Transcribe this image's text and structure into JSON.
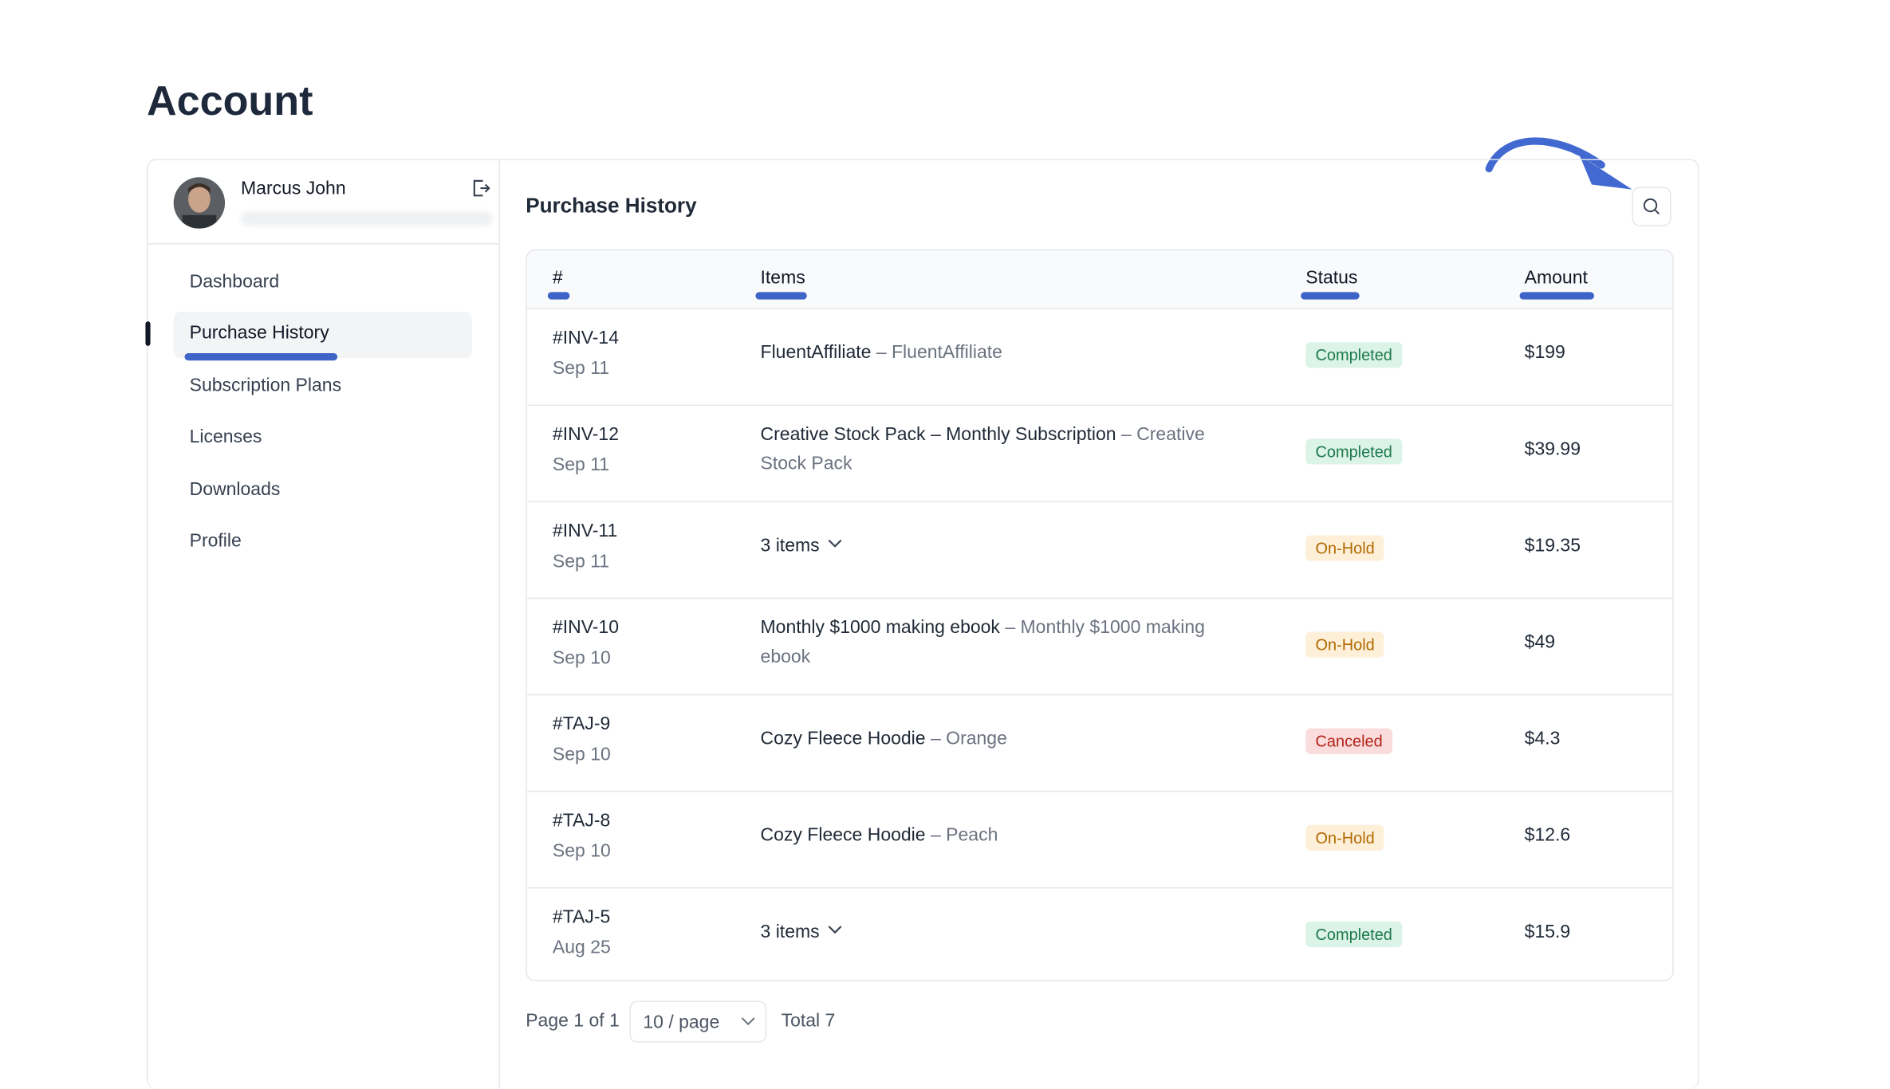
{
  "page": {
    "title": "Account"
  },
  "user": {
    "name": "Marcus John"
  },
  "nav": {
    "items": [
      "Dashboard",
      "Purchase History",
      "Subscription Plans",
      "Licenses",
      "Downloads",
      "Profile"
    ],
    "active": 1
  },
  "section": {
    "title": "Purchase History"
  },
  "table": {
    "headers": [
      "#",
      "Items",
      "Status",
      "Amount"
    ],
    "rows": [
      {
        "id": "#INV-14",
        "date": "Sep 11",
        "item": "FluentAffiliate",
        "variant": "FluentAffiliate",
        "status": "Completed",
        "amount": "$199"
      },
      {
        "id": "#INV-12",
        "date": "Sep 11",
        "item": "Creative Stock Pack – Monthly Subscription",
        "variant": "Creative Stock Pack",
        "status": "Completed",
        "amount": "$39.99"
      },
      {
        "id": "#INV-11",
        "date": "Sep 11",
        "item": "3 items",
        "status": "On-Hold",
        "amount": "$19.35"
      },
      {
        "id": "#INV-10",
        "date": "Sep 10",
        "item": "Monthly $1000 making ebook",
        "variant": "Monthly $1000 making ebook",
        "status": "On-Hold",
        "amount": "$49"
      },
      {
        "id": "#TAJ-9",
        "date": "Sep 10",
        "item": "Cozy Fleece Hoodie",
        "variant": "Orange",
        "status": "Canceled",
        "amount": "$4.3"
      },
      {
        "id": "#TAJ-8",
        "date": "Sep 10",
        "item": "Cozy Fleece Hoodie",
        "variant": "Peach",
        "status": "On-Hold",
        "amount": "$12.6"
      },
      {
        "id": "#TAJ-5",
        "date": "Aug 25",
        "item": "3 items",
        "status": "Completed",
        "amount": "$15.9"
      }
    ]
  },
  "pagination": {
    "page": "Page 1 of 1",
    "size": "10 / page",
    "total": "Total 7"
  }
}
